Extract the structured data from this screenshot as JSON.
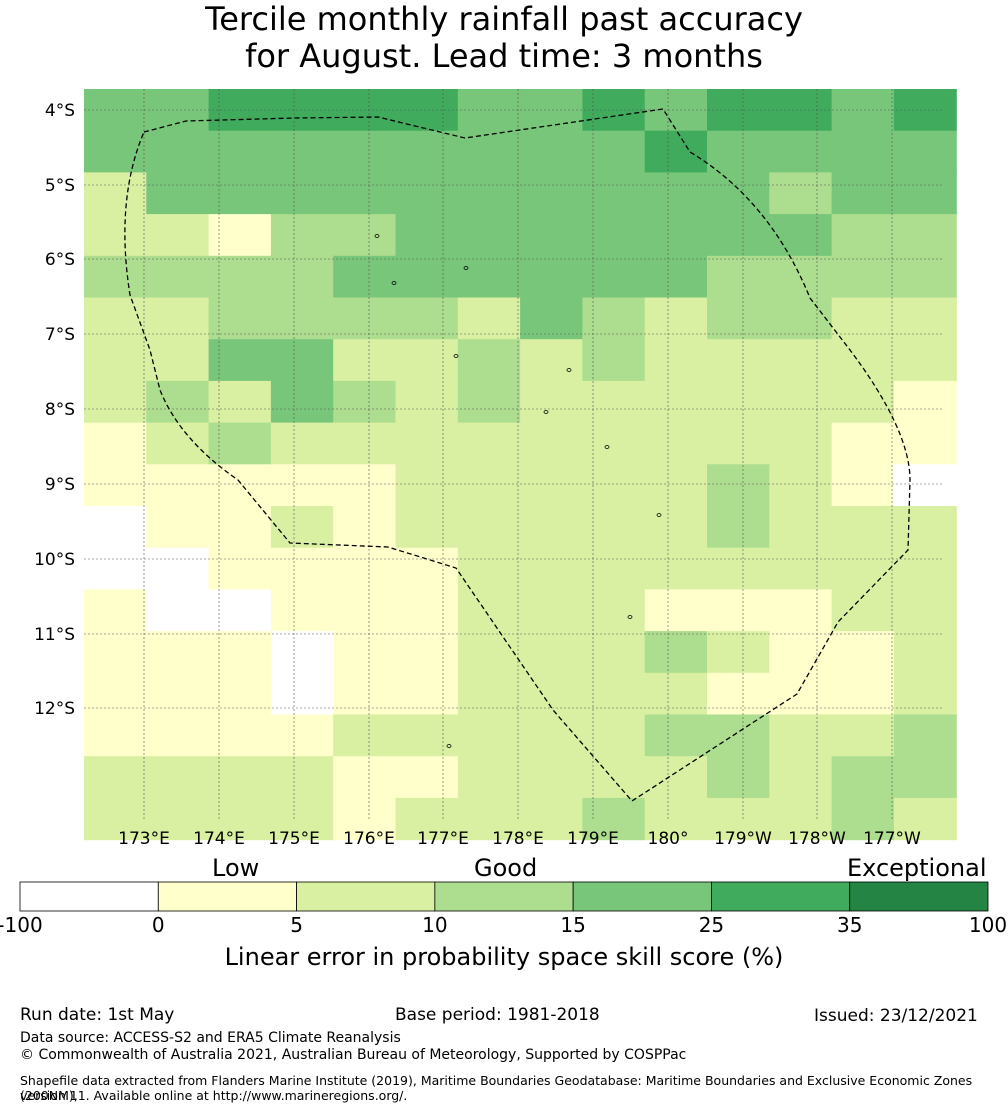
{
  "title": {
    "line1": "Tercile monthly rainfall past accuracy",
    "line2": "for August. Lead time: 3 months"
  },
  "map": {
    "lat_labels": [
      "4°S",
      "5°S",
      "6°S",
      "7°S",
      "8°S",
      "9°S",
      "10°S",
      "11°S",
      "12°S"
    ],
    "lon_labels": [
      "173°E",
      "174°E",
      "175°E",
      "176°E",
      "177°E",
      "178°E",
      "179°E",
      "180°",
      "179°W",
      "178°W",
      "177°W"
    ],
    "boundary_style": "dashed",
    "grid": [
      "BBDDDDDDDDDCCCBBBCCCBBBBDDDDBBDCCCCCDDDDCCCCC",
      "BBCCCCCCCCCCCCCCCCCCCCCCCCCCCCCCCCCCCCCCCCCCC",
      "DDCCCCCCCCCCCCCCCCCCCCCCCCCCCCCCCCCCCCCCCCCCC",
      "DBCCCCCCCCCCCCCCCCCCCCCCCCCCCCCCCCCCCCCCCCCCC",
      "BBBBCCCCCCCCCCCCCCCCCCCCCCCCCCCCCCCCCCCCCCCCC",
      "BBBBCCCCCCCCCCCCCCCCCCCCCCCCCCCCCCCCCCCCCCCCC",
      "BBBBCCCCCCCCCCCCCCCCCCCCCCCCCCCCCCCCCCCCCCCCC",
      "DDDDCCCCCCCCCCCCCCCCCCCCCCCCCCCCCCCCCCCCCCCCC",
      "BBBBCCCCCCCCCCCCCCCCCCCCCCCCCCCCCCCCCCCCCCCCC"
    ],
    "rows": [
      "EEFFFDDDDFFFFFFEFFEEFFFFFFFFFFDDDDDDFFFFFFFFFFEEE",
      "EEEEEEDDDDEEEEEEEEEEEEEEEEEEEEEEEEEEEEEEEEEEEEEEEE"
    ]
  },
  "colorbar": {
    "bins": [
      {
        "lo": "-100",
        "hi": "0",
        "color": "#ffffff"
      },
      {
        "lo": "0",
        "hi": "5",
        "color": "#ffffcc"
      },
      {
        "lo": "5",
        "hi": "10",
        "color": "#d9f0a3"
      },
      {
        "lo": "10",
        "hi": "15",
        "color": "#addd8e"
      },
      {
        "lo": "15",
        "hi": "25",
        "color": "#78c679"
      },
      {
        "lo": "25",
        "hi": "35",
        "color": "#41ab5d"
      },
      {
        "lo": "35",
        "hi": "100",
        "color": "#238443"
      }
    ],
    "ticks": [
      "-100",
      "0",
      "5",
      "10",
      "15",
      "25",
      "35",
      "100"
    ],
    "categories": [
      "Low",
      "Good",
      "Exceptional"
    ],
    "label": "Linear error in probability space skill score (%)"
  },
  "cells": [
    "WYGLMDDDDDDDDDDMMMMMMMMLMMMMMMLLLLLMMMMMMMMMMMM",
    "YYYYYYYYYYYYYYYYYYYYYYYYYYYYYYYYYYYYYYYYYYYYYYY"
  ],
  "footer": {
    "run_date": "Run date: 1st May",
    "base_period": "Base period: 1981-2018",
    "issued": "Issued: 23/12/2021",
    "data_source": "Data source: ACCESS-S2 and ERA5 Climate Reanalysis",
    "copyright": "© Commonwealth of Australia 2021, Australian Bureau of Meteorology, Supported by COSPPac",
    "shapefile_line1": "Shapefile data extracted from Flanders Marine Institute (2019), Maritime Boundaries Geodatabase: Maritime Boundaries and Exclusive Economic Zones (200NM),",
    "shapefile_line2": "version 11. Available online at http://www.marineregions.org/."
  }
}
